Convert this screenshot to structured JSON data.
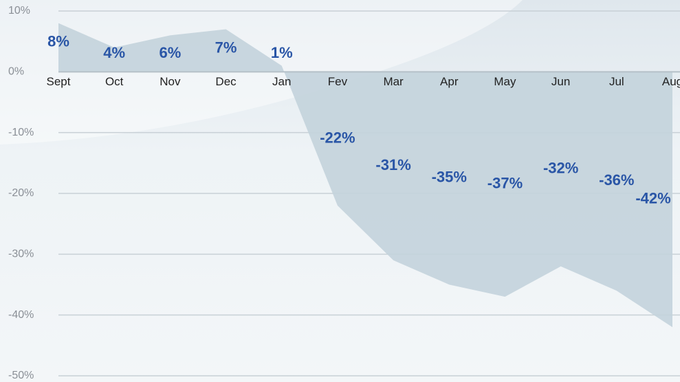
{
  "chart_data": {
    "type": "area",
    "categories": [
      "Sept",
      "Oct",
      "Nov",
      "Dec",
      "Jan",
      "Fev",
      "Mar",
      "Apr",
      "May",
      "Jun",
      "Jul",
      "Aug"
    ],
    "values": [
      8,
      4,
      6,
      7,
      1,
      -22,
      -31,
      -35,
      -37,
      -32,
      -36,
      -42
    ],
    "value_labels": [
      "8%",
      "4%",
      "6%",
      "7%",
      "1%",
      "-22%",
      "-31%",
      "-35%",
      "-37%",
      "-32%",
      "-36%",
      "-42%"
    ],
    "color": "#c3d3dc",
    "ylim": [
      -50,
      10
    ],
    "yticks": [
      {
        "value": 10,
        "label": "10%"
      },
      {
        "value": 0,
        "label": "0%"
      },
      {
        "value": -10,
        "label": "-10%"
      },
      {
        "value": -20,
        "label": "-20%"
      },
      {
        "value": -30,
        "label": "-30%"
      },
      {
        "value": -40,
        "label": "-40%"
      },
      {
        "value": -50,
        "label": "-50%"
      }
    ],
    "grid": true
  }
}
